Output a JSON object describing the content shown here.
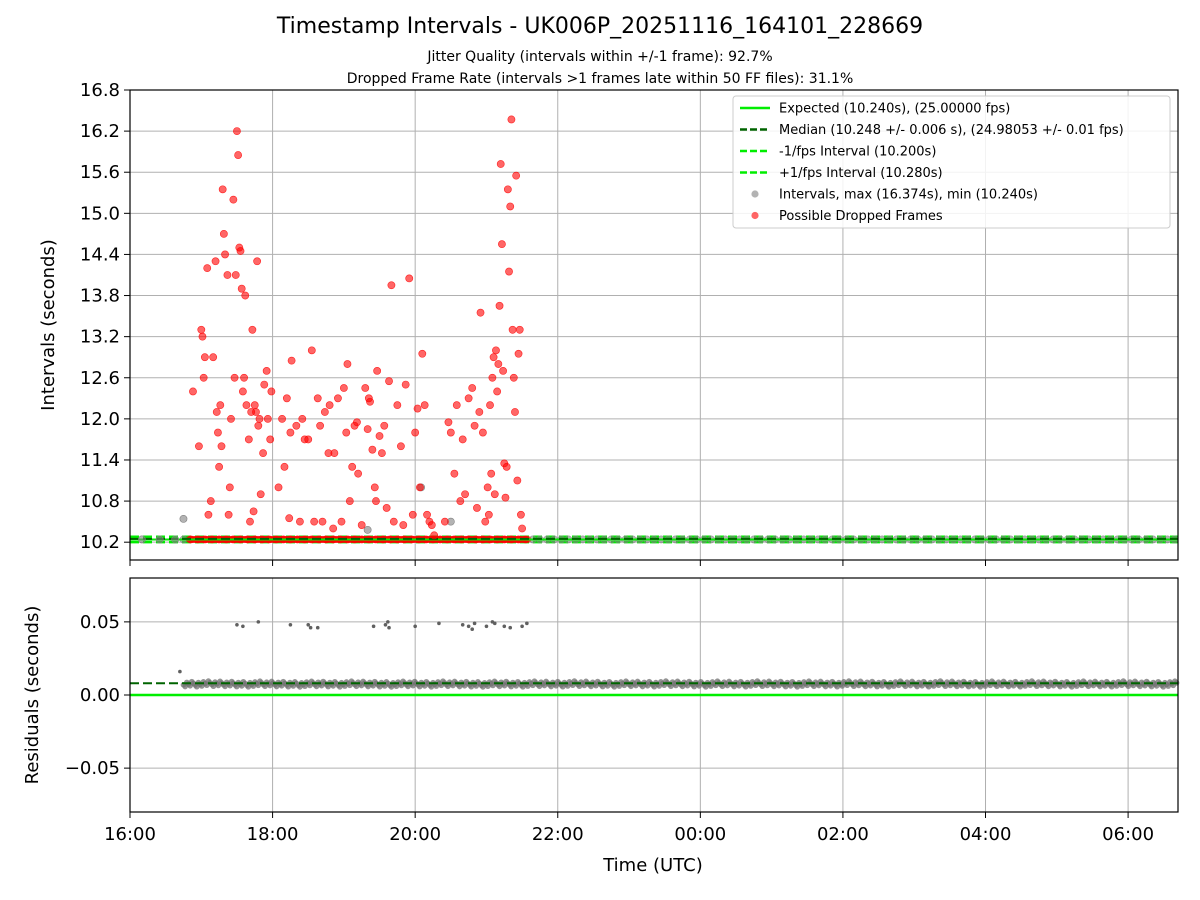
{
  "header": {
    "title": "Timestamp Intervals - UK006P_20251116_164101_228669",
    "subtitle1": "Jitter Quality (intervals within +/-1 frame): 92.7%",
    "subtitle2": "Dropped Frame Rate (intervals >1 frames late within 50 FF files): 31.1%"
  },
  "colors": {
    "expected": "#00ee00",
    "median": "#006400",
    "interval_bounds": "#00ee00",
    "intervals": "#808080",
    "dropped": "#ff0000",
    "grid": "#b0b0b0"
  },
  "chart_data": [
    {
      "type": "scatter",
      "id": "top",
      "ylabel": "Intervals (seconds)",
      "x_axis": "time",
      "xlim": [
        "16:00",
        "06:42"
      ],
      "ylim": [
        9.94,
        16.8
      ],
      "yticks": [
        10.2,
        10.8,
        11.4,
        12.0,
        12.6,
        13.2,
        13.8,
        14.4,
        15.0,
        15.6,
        16.2,
        16.8
      ],
      "ytick_labels": [
        "10.2",
        "10.8",
        "11.4",
        "12.0",
        "12.6",
        "13.2",
        "13.8",
        "14.4",
        "15.0",
        "15.6",
        "16.2",
        "16.8"
      ],
      "grid": true,
      "legend_position": "top-right",
      "legend": [
        {
          "label": "Expected (10.240s), (25.00000 fps)",
          "style": "solid",
          "color": "#00ee00"
        },
        {
          "label": "Median (10.248 +/- 0.006 s), (24.98053 +/- 0.01 fps)",
          "style": "dashed",
          "color": "#006400"
        },
        {
          "label": "-1/fps Interval (10.200s)",
          "style": "dashed",
          "color": "#00ee00"
        },
        {
          "label": "+1/fps Interval (10.280s)",
          "style": "dashed",
          "color": "#00ee00"
        },
        {
          "label": "Intervals, max (16.374s), min (10.240s)",
          "style": "marker",
          "color": "#808080"
        },
        {
          "label": "Possible Dropped Frames",
          "style": "marker",
          "color": "#ff0000"
        }
      ],
      "lines": [
        {
          "name": "Expected",
          "y": 10.24
        },
        {
          "name": "Median",
          "y": 10.248
        },
        {
          "name": "-1/fps",
          "y": 10.2
        },
        {
          "name": "+1/fps",
          "y": 10.28
        }
      ],
      "series": [
        {
          "name": "Intervals",
          "points": [
            [
              "16:45",
              10.54
            ],
            [
              "19:20",
              10.38
            ],
            [
              "20:05",
              11.0
            ],
            [
              "20:30",
              10.5
            ],
            [
              "16:10",
              10.24
            ],
            [
              "16:25",
              10.24
            ],
            [
              "16:38",
              10.24
            ]
          ]
        },
        {
          "name": "Possible Dropped Frames",
          "points": [
            [
              "16:53",
              12.4
            ],
            [
              "16:58",
              11.6
            ],
            [
              "17:00",
              13.3
            ],
            [
              "17:01",
              13.2
            ],
            [
              "17:02",
              12.6
            ],
            [
              "17:03",
              12.9
            ],
            [
              "17:05",
              14.2
            ],
            [
              "17:06",
              10.6
            ],
            [
              "17:08",
              10.8
            ],
            [
              "17:10",
              12.9
            ],
            [
              "17:12",
              14.3
            ],
            [
              "17:13",
              12.1
            ],
            [
              "17:14",
              11.8
            ],
            [
              "17:15",
              11.3
            ],
            [
              "17:16",
              12.2
            ],
            [
              "17:17",
              11.6
            ],
            [
              "17:18",
              15.35
            ],
            [
              "17:19",
              14.7
            ],
            [
              "17:20",
              14.4
            ],
            [
              "17:22",
              14.1
            ],
            [
              "17:23",
              10.6
            ],
            [
              "17:24",
              11.0
            ],
            [
              "17:25",
              12.0
            ],
            [
              "17:27",
              15.2
            ],
            [
              "17:28",
              12.6
            ],
            [
              "17:29",
              14.1
            ],
            [
              "17:30",
              16.2
            ],
            [
              "17:31",
              15.85
            ],
            [
              "17:32",
              14.5
            ],
            [
              "17:33",
              14.45
            ],
            [
              "17:34",
              13.9
            ],
            [
              "17:35",
              12.4
            ],
            [
              "17:36",
              12.6
            ],
            [
              "17:37",
              13.8
            ],
            [
              "17:38",
              12.2
            ],
            [
              "17:40",
              11.7
            ],
            [
              "17:41",
              10.5
            ],
            [
              "17:42",
              12.1
            ],
            [
              "17:43",
              13.3
            ],
            [
              "17:44",
              10.65
            ],
            [
              "17:45",
              12.2
            ],
            [
              "17:46",
              12.1
            ],
            [
              "17:47",
              14.3
            ],
            [
              "17:48",
              11.9
            ],
            [
              "17:49",
              12.0
            ],
            [
              "17:50",
              10.9
            ],
            [
              "17:52",
              11.5
            ],
            [
              "17:53",
              12.5
            ],
            [
              "17:55",
              12.7
            ],
            [
              "17:56",
              12.0
            ],
            [
              "17:58",
              11.7
            ],
            [
              "17:59",
              12.4
            ],
            [
              "18:05",
              11.0
            ],
            [
              "18:08",
              12.0
            ],
            [
              "18:10",
              11.3
            ],
            [
              "18:12",
              12.3
            ],
            [
              "18:14",
              10.55
            ],
            [
              "18:15",
              11.8
            ],
            [
              "18:16",
              12.85
            ],
            [
              "18:20",
              11.9
            ],
            [
              "18:23",
              10.5
            ],
            [
              "18:25",
              12.0
            ],
            [
              "18:27",
              11.7
            ],
            [
              "18:30",
              11.7
            ],
            [
              "18:33",
              13.0
            ],
            [
              "18:35",
              10.5
            ],
            [
              "18:38",
              12.3
            ],
            [
              "18:40",
              11.9
            ],
            [
              "18:42",
              10.5
            ],
            [
              "18:44",
              12.1
            ],
            [
              "18:47",
              11.5
            ],
            [
              "18:48",
              12.2
            ],
            [
              "18:51",
              10.4
            ],
            [
              "18:52",
              11.5
            ],
            [
              "18:55",
              12.3
            ],
            [
              "18:58",
              10.5
            ],
            [
              "19:00",
              12.45
            ],
            [
              "19:02",
              11.8
            ],
            [
              "19:03",
              12.8
            ],
            [
              "19:05",
              10.8
            ],
            [
              "19:07",
              11.3
            ],
            [
              "19:09",
              11.9
            ],
            [
              "19:11",
              11.95
            ],
            [
              "19:12",
              11.2
            ],
            [
              "19:15",
              10.45
            ],
            [
              "19:18",
              12.45
            ],
            [
              "19:20",
              11.85
            ],
            [
              "19:21",
              12.3
            ],
            [
              "19:22",
              12.25
            ],
            [
              "19:24",
              11.55
            ],
            [
              "19:26",
              11.0
            ],
            [
              "19:27",
              10.8
            ],
            [
              "19:28",
              12.7
            ],
            [
              "19:30",
              11.75
            ],
            [
              "19:32",
              11.5
            ],
            [
              "19:34",
              11.9
            ],
            [
              "19:36",
              10.7
            ],
            [
              "19:38",
              12.55
            ],
            [
              "19:40",
              13.95
            ],
            [
              "19:42",
              10.5
            ],
            [
              "19:45",
              12.2
            ],
            [
              "19:48",
              11.6
            ],
            [
              "19:50",
              10.45
            ],
            [
              "19:52",
              12.5
            ],
            [
              "19:55",
              14.05
            ],
            [
              "19:58",
              10.6
            ],
            [
              "20:00",
              11.8
            ],
            [
              "20:02",
              12.15
            ],
            [
              "20:04",
              11.0
            ],
            [
              "20:06",
              12.95
            ],
            [
              "20:08",
              12.2
            ],
            [
              "20:10",
              10.6
            ],
            [
              "20:12",
              10.5
            ],
            [
              "20:14",
              10.45
            ],
            [
              "20:16",
              10.3
            ],
            [
              "20:25",
              10.5
            ],
            [
              "20:28",
              11.95
            ],
            [
              "20:30",
              11.8
            ],
            [
              "20:33",
              11.2
            ],
            [
              "20:35",
              12.2
            ],
            [
              "20:38",
              10.8
            ],
            [
              "20:40",
              11.7
            ],
            [
              "20:42",
              10.9
            ],
            [
              "20:45",
              12.3
            ],
            [
              "20:48",
              12.45
            ],
            [
              "20:50",
              11.9
            ],
            [
              "20:52",
              10.7
            ],
            [
              "20:54",
              12.1
            ],
            [
              "20:55",
              13.55
            ],
            [
              "20:57",
              11.8
            ],
            [
              "20:59",
              10.5
            ],
            [
              "21:01",
              11.0
            ],
            [
              "21:02",
              10.6
            ],
            [
              "21:03",
              12.2
            ],
            [
              "21:04",
              11.2
            ],
            [
              "21:05",
              12.6
            ],
            [
              "21:06",
              12.9
            ],
            [
              "21:07",
              10.9
            ],
            [
              "21:08",
              13.0
            ],
            [
              "21:09",
              12.4
            ],
            [
              "21:10",
              12.8
            ],
            [
              "21:11",
              13.65
            ],
            [
              "21:12",
              15.72
            ],
            [
              "21:13",
              14.55
            ],
            [
              "21:14",
              12.7
            ],
            [
              "21:15",
              11.35
            ],
            [
              "21:16",
              10.85
            ],
            [
              "21:17",
              11.3
            ],
            [
              "21:18",
              15.35
            ],
            [
              "21:19",
              14.15
            ],
            [
              "21:20",
              15.1
            ],
            [
              "21:21",
              16.37
            ],
            [
              "21:22",
              13.3
            ],
            [
              "21:23",
              12.6
            ],
            [
              "21:24",
              12.1
            ],
            [
              "21:25",
              15.55
            ],
            [
              "21:26",
              11.1
            ],
            [
              "21:27",
              12.95
            ],
            [
              "21:28",
              13.3
            ],
            [
              "21:29",
              10.6
            ],
            [
              "21:30",
              10.4
            ]
          ]
        }
      ]
    },
    {
      "type": "scatter",
      "id": "bottom",
      "ylabel": "Residuals (seconds)",
      "xlabel": "Time (UTC)",
      "x_axis": "time",
      "xlim": [
        "16:00",
        "06:42"
      ],
      "ylim": [
        -0.08,
        0.08
      ],
      "yticks": [
        -0.05,
        0.0,
        0.05
      ],
      "ytick_labels": [
        "−0.05",
        "0.00",
        "0.05"
      ],
      "xticks": [
        "16:00",
        "18:00",
        "20:00",
        "22:00",
        "00:00",
        "02:00",
        "04:00",
        "06:00"
      ],
      "xtick_labels": [
        "16:00",
        "18:00",
        "20:00",
        "22:00",
        "00:00",
        "02:00",
        "04:00",
        "06:00"
      ],
      "grid": true,
      "lines": [
        {
          "name": "Expected residual",
          "y": 0.0
        },
        {
          "name": "Median residual",
          "y": 0.008
        }
      ],
      "series": [
        {
          "name": "Residuals",
          "points": [
            [
              "16:42",
              0.016
            ],
            [
              "17:30",
              0.048
            ],
            [
              "17:35",
              0.047
            ],
            [
              "17:48",
              0.05
            ],
            [
              "18:15",
              0.048
            ],
            [
              "18:30",
              0.048
            ],
            [
              "18:32",
              0.046
            ],
            [
              "18:38",
              0.046
            ],
            [
              "19:25",
              0.047
            ],
            [
              "19:35",
              0.048
            ],
            [
              "19:37",
              0.05
            ],
            [
              "19:38",
              0.046
            ],
            [
              "20:00",
              0.047
            ],
            [
              "20:20",
              0.049
            ],
            [
              "20:40",
              0.048
            ],
            [
              "20:45",
              0.047
            ],
            [
              "20:48",
              0.045
            ],
            [
              "20:50",
              0.049
            ],
            [
              "21:00",
              0.047
            ],
            [
              "21:05",
              0.05
            ],
            [
              "21:07",
              0.049
            ],
            [
              "21:15",
              0.047
            ],
            [
              "21:20",
              0.046
            ],
            [
              "21:30",
              0.047
            ],
            [
              "21:34",
              0.049
            ]
          ],
          "band": {
            "from": "16:45",
            "to": "06:42",
            "center": 0.0075,
            "spread": 0.0025
          }
        }
      ]
    }
  ]
}
